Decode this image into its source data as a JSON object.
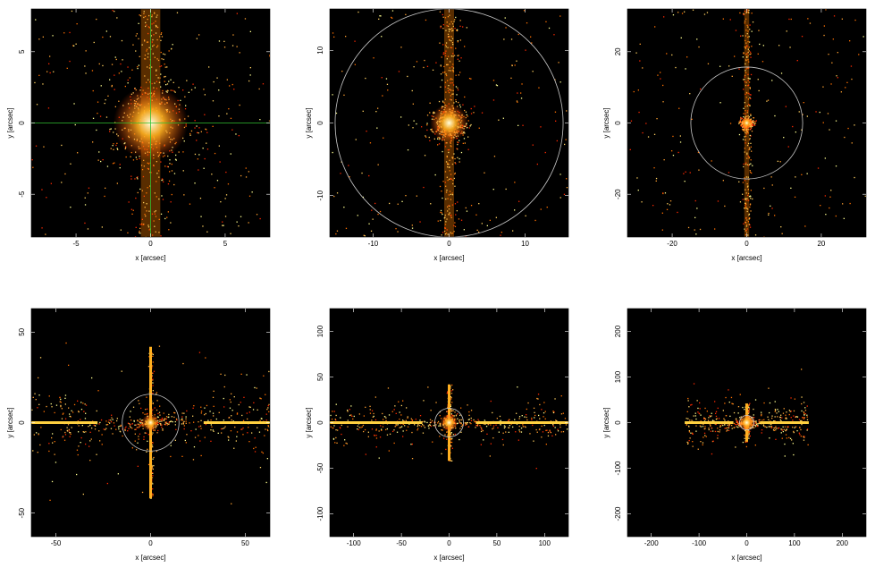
{
  "chart_data": [
    {
      "type": "image",
      "xlabel": "x [arcsec]",
      "ylabel": "y [arcsec]",
      "xlim": [
        -8,
        8
      ],
      "ylim": [
        -8,
        8
      ],
      "xticks": [
        -5,
        0,
        5
      ],
      "yticks": [
        -5,
        0,
        5
      ]
    },
    {
      "type": "image",
      "xlabel": "x [arcsec]",
      "ylabel": "y [arcsec]",
      "xlim": [
        -15.7,
        15.7
      ],
      "ylim": [
        -15.7,
        15.7
      ],
      "xticks": [
        -10,
        0,
        10
      ],
      "yticks": [
        -10,
        0,
        10
      ],
      "circle_radius": 15
    },
    {
      "type": "image",
      "xlabel": "x [arcsec]",
      "ylabel": "y [arcsec]",
      "xlim": [
        -32,
        32
      ],
      "ylim": [
        -32,
        32
      ],
      "xticks": [
        -20,
        0,
        20
      ],
      "yticks": [
        -20,
        0,
        20
      ],
      "circle_radius": 15
    },
    {
      "type": "image",
      "xlabel": "x [arcsec]",
      "ylabel": "y [arcsec]",
      "xlim": [
        -63,
        63
      ],
      "ylim": [
        -63,
        63
      ],
      "xticks": [
        -50,
        0,
        50
      ],
      "yticks": [
        -50,
        0,
        50
      ],
      "circle_radius": 15
    },
    {
      "type": "image",
      "xlabel": "x [arcsec]",
      "ylabel": "y [arcsec]",
      "xlim": [
        -125,
        125
      ],
      "ylim": [
        -125,
        125
      ],
      "xticks": [
        -100,
        -50,
        0,
        50,
        100
      ],
      "yticks": [
        -100,
        -50,
        0,
        50,
        100
      ],
      "circle_radius": 15
    },
    {
      "type": "image",
      "xlabel": "x [arcsec]",
      "ylabel": "y [arcsec]",
      "xlim": [
        -250,
        250
      ],
      "ylim": [
        -250,
        250
      ],
      "xticks": [
        -200,
        -100,
        0,
        100,
        200
      ],
      "yticks": [
        -200,
        -100,
        0,
        100,
        200
      ],
      "circle_radius": 15
    }
  ]
}
